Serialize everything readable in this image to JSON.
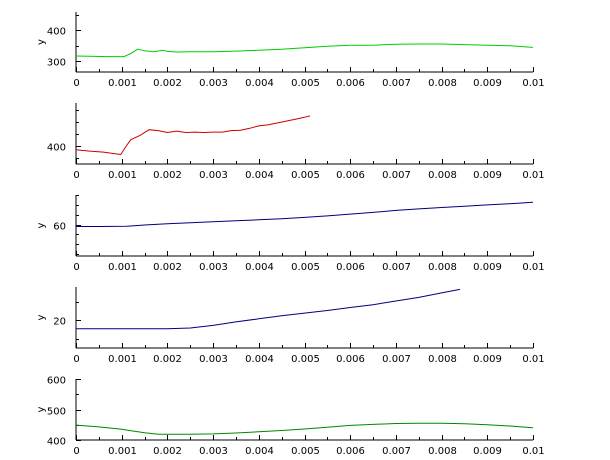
{
  "chart_data": [
    {
      "type": "line",
      "ylabel": "y",
      "xlim": [
        0,
        0.01
      ],
      "ylim": [
        265,
        460
      ],
      "xticks": [
        "0",
        "0.001",
        "0.002",
        "0.003",
        "0.004",
        "0.005",
        "0.006",
        "0.007",
        "0.008",
        "0.009",
        "0.01"
      ],
      "yticks": [
        {
          "v": 300,
          "label": "300"
        },
        {
          "v": 400,
          "label": "400"
        }
      ],
      "minor_ticks": true,
      "grid": false,
      "series": [
        {
          "color": "#00cc00",
          "x": [
            0,
            0.0003,
            0.0007,
            0.00105,
            0.0012,
            0.00135,
            0.0015,
            0.0017,
            0.0019,
            0.002,
            0.0022,
            0.0025,
            0.003,
            0.0035,
            0.004,
            0.0045,
            0.005,
            0.0055,
            0.006,
            0.0065,
            0.007,
            0.0075,
            0.008,
            0.0085,
            0.009,
            0.0095,
            0.01
          ],
          "y": [
            317,
            316,
            315,
            315,
            325,
            339,
            334,
            331,
            336,
            332,
            330,
            331,
            331,
            333,
            336,
            339,
            344,
            349,
            352,
            352,
            355,
            356,
            356,
            354,
            352,
            350,
            345
          ]
        }
      ]
    },
    {
      "type": "line",
      "ylabel": "",
      "xlim": [
        0,
        0.01
      ],
      "ylim": [
        362,
        490
      ],
      "xticks": [
        "0",
        "0.001",
        "0.002",
        "0.003",
        "0.004",
        "0.005",
        "0.006",
        "0.007",
        "0.008",
        "0.009",
        "0.01"
      ],
      "yticks": [
        {
          "v": 400,
          "label": "400"
        }
      ],
      "minor_ticks": true,
      "grid": false,
      "series": [
        {
          "color": "#cc0000",
          "x": [
            0,
            0.0003,
            0.0006,
            0.0009,
            0.00098,
            0.0011,
            0.0012,
            0.0014,
            0.0016,
            0.0018,
            0.002,
            0.0022,
            0.0024,
            0.0026,
            0.0028,
            0.003,
            0.0032,
            0.0034,
            0.0036,
            0.0038,
            0.004,
            0.0042,
            0.0044,
            0.0046,
            0.0048,
            0.005,
            0.00512
          ],
          "y": [
            392,
            389,
            387,
            383,
            382,
            400,
            413,
            422,
            434,
            432,
            428,
            431,
            428,
            429,
            428,
            429,
            429,
            432,
            433,
            437,
            442,
            444,
            448,
            452,
            456,
            460,
            463
          ]
        }
      ]
    },
    {
      "type": "line",
      "ylabel": "y",
      "xlim": [
        0,
        0.01
      ],
      "ylim": [
        28,
        90
      ],
      "xticks": [
        "0",
        "0.001",
        "0.002",
        "0.003",
        "0.004",
        "0.005",
        "0.006",
        "0.007",
        "0.008",
        "0.009",
        "0.01"
      ],
      "yticks": [
        {
          "v": 60,
          "label": "60"
        }
      ],
      "minor_ticks": true,
      "grid": false,
      "series": [
        {
          "color": "#000080",
          "x": [
            0,
            0.0005,
            0.0011,
            0.0015,
            0.002,
            0.0025,
            0.003,
            0.0035,
            0.004,
            0.0045,
            0.005,
            0.0055,
            0.006,
            0.0065,
            0.007,
            0.0075,
            0.008,
            0.0085,
            0.009,
            0.0095,
            0.01
          ],
          "y": [
            58,
            58,
            58.2,
            59.5,
            60.8,
            61.8,
            62.9,
            63.9,
            64.8,
            65.8,
            67.2,
            68.8,
            70.6,
            72.3,
            74.3,
            75.9,
            77.3,
            78.6,
            79.9,
            81.2,
            82.6
          ]
        }
      ]
    },
    {
      "type": "line",
      "ylabel": "y",
      "xlim": [
        0,
        0.01
      ],
      "ylim": [
        5,
        38
      ],
      "xticks": [
        "0",
        "0.001",
        "0.002",
        "0.003",
        "0.004",
        "0.005",
        "0.006",
        "0.007",
        "0.008",
        "0.009",
        "0.01"
      ],
      "yticks": [
        {
          "v": 20,
          "label": "20"
        }
      ],
      "minor_ticks": true,
      "grid": false,
      "series": [
        {
          "color": "#000080",
          "x": [
            0,
            0.0005,
            0.001,
            0.0015,
            0.002,
            0.0025,
            0.003,
            0.0035,
            0.004,
            0.0045,
            0.005,
            0.0055,
            0.006,
            0.0065,
            0.007,
            0.0075,
            0.008,
            0.0084
          ],
          "y": [
            15.4,
            15.4,
            15.4,
            15.4,
            15.4,
            15.8,
            17.2,
            19.1,
            20.8,
            22.4,
            23.9,
            25.3,
            26.9,
            28.4,
            30.4,
            32.4,
            34.8,
            36.7
          ]
        }
      ]
    },
    {
      "type": "line",
      "ylabel": "y",
      "xlim": [
        0,
        0.01
      ],
      "ylim": [
        400,
        600
      ],
      "xticks": [
        "0",
        "0.001",
        "0.002",
        "0.003",
        "0.004",
        "0.005",
        "0.006",
        "0.007",
        "0.008",
        "0.009",
        "0.01"
      ],
      "yticks": [
        {
          "v": 400,
          "label": "400"
        },
        {
          "v": 500,
          "label": "500"
        },
        {
          "v": 600,
          "label": "600"
        }
      ],
      "minor_ticks": true,
      "grid": false,
      "series": [
        {
          "color": "#008800",
          "x": [
            0,
            0.0005,
            0.001,
            0.0015,
            0.0018,
            0.002,
            0.0025,
            0.003,
            0.0035,
            0.004,
            0.0045,
            0.005,
            0.0055,
            0.006,
            0.0065,
            0.007,
            0.0075,
            0.008,
            0.0085,
            0.009,
            0.0095,
            0.01
          ],
          "y": [
            449,
            443,
            435,
            424,
            419,
            419,
            419,
            420,
            423,
            427,
            431,
            436,
            442,
            448,
            451,
            454,
            455,
            455,
            453,
            450,
            446,
            440
          ]
        }
      ]
    }
  ]
}
